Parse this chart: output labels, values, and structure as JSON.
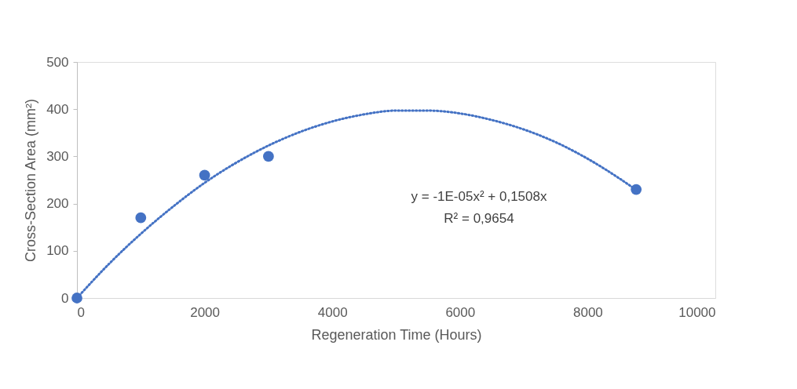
{
  "chart_data": {
    "type": "scatter",
    "xlabel": "Regeneration Time (Hours)",
    "ylabel": "Cross-Section Area (mm²)",
    "x": [
      0,
      1000,
      2000,
      3000,
      8760
    ],
    "series": [
      {
        "color": "#4472c4",
        "marker": "circle",
        "values": [
          0,
          170,
          260,
          300,
          230
        ]
      },
      {
        "type": "line",
        "color": "#4472c4",
        "line_style": "dotted",
        "marker": "none",
        "x": [
          0,
          500,
          1000,
          1500,
          2000,
          2500,
          3000,
          3500,
          4000,
          4500,
          5000,
          5500,
          6000,
          6500,
          7000,
          7500,
          8000,
          8500,
          8760
        ],
        "values": [
          0,
          72,
          136,
          193,
          244,
          287,
          323,
          352,
          374,
          389,
          397,
          397,
          391,
          377,
          357,
          330,
          295,
          253,
          229
        ]
      }
    ],
    "xlim": [
      0,
      10000
    ],
    "xticks": [
      0,
      2000,
      4000,
      6000,
      8000,
      10000
    ],
    "ylim": [
      0,
      500
    ],
    "yticks": [
      0,
      100,
      200,
      300,
      400,
      500
    ],
    "grid": false,
    "annotations": [
      "y = -1E-05x² + 0,1508x",
      "R² = 0,9654"
    ]
  }
}
